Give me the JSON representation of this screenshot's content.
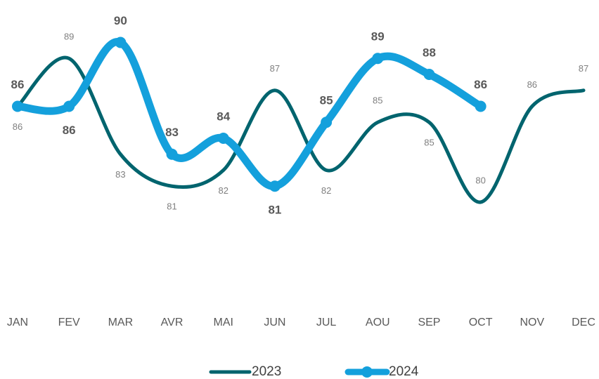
{
  "chart_data": {
    "type": "line",
    "categories": [
      "JAN",
      "FEV",
      "MAR",
      "AVR",
      "MAI",
      "JUN",
      "JUL",
      "AOU",
      "SEP",
      "OCT",
      "NOV",
      "DEC"
    ],
    "series": [
      {
        "name": "2023",
        "color": "#00646e",
        "values": [
          86,
          89,
          83,
          81,
          82,
          87,
          82,
          85,
          85,
          80,
          86,
          87
        ]
      },
      {
        "name": "2024",
        "color": "#14a0dc",
        "values": [
          86,
          86,
          90,
          83,
          84,
          81,
          85,
          89,
          88,
          86,
          null,
          null
        ]
      }
    ],
    "ylim": [
      76,
      92
    ]
  }
}
